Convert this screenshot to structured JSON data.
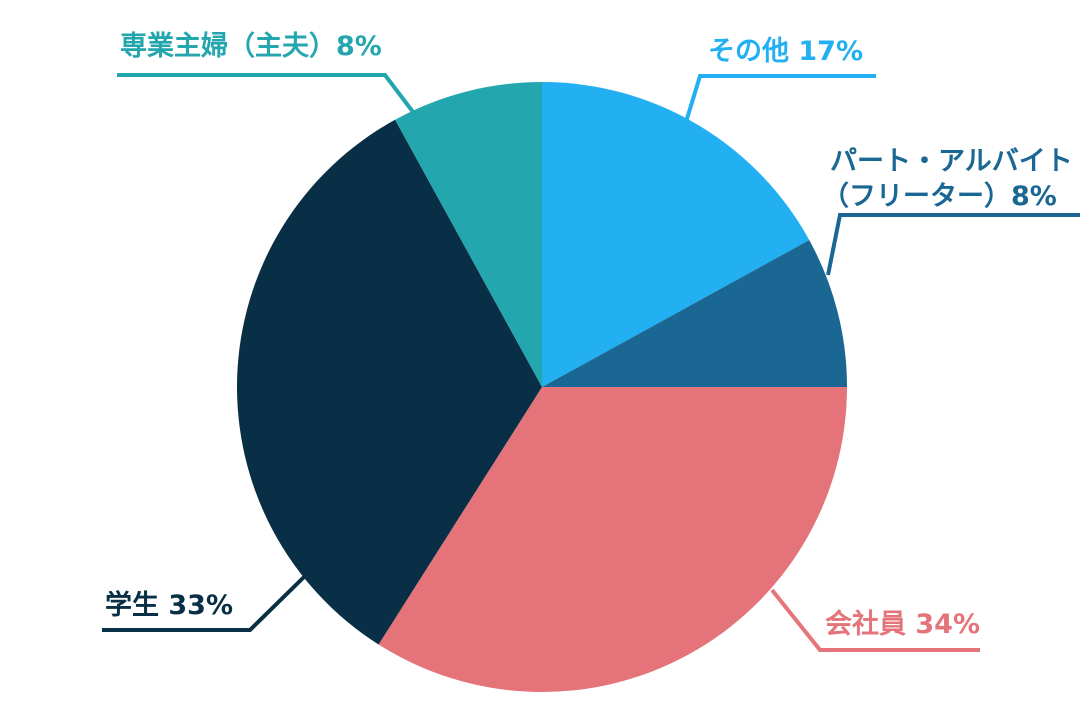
{
  "chart_data": {
    "type": "pie",
    "title": "",
    "slices": [
      {
        "name": "その他",
        "value": 17,
        "percent_label": "17%",
        "color": "#22b0f3"
      },
      {
        "name": "パート・アルバイト（フリーター）",
        "value": 8,
        "percent_label": "8%",
        "color": "#1b6794"
      },
      {
        "name": "会社員",
        "value": 34,
        "percent_label": "34%",
        "color": "#e4747a"
      },
      {
        "name": "学生",
        "value": 33,
        "percent_label": "33%",
        "color": "#082f45"
      },
      {
        "name": "専業主婦（主夫）",
        "value": 8,
        "percent_label": "8%",
        "color": "#23a6ae"
      }
    ],
    "labels": {
      "other": "その他 17%",
      "part_time_line1": "パート・アルバイト",
      "part_time_line2": "（フリーター）8%",
      "employee": "会社員 34%",
      "student": "学生 33%",
      "homemaker": "専業主婦（主夫）8%"
    },
    "start_angle": "12 o'clock",
    "direction": "clockwise",
    "legend": "none"
  }
}
